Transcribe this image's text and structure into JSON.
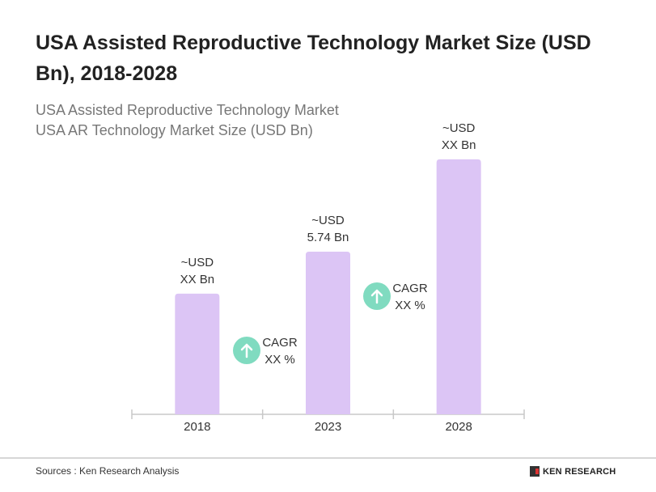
{
  "title": "USA Assisted Reproductive Technology Market Size (USD Bn), 2018-2028",
  "subtitle_lines": [
    "USA Assisted Reproductive Technology Market",
    "USA AR Technology Market Size (USD Bn)"
  ],
  "colors": {
    "bar": "#dcc5f5",
    "cagr_circle": "#80dbc0",
    "axis": "#c8c8c8"
  },
  "chart_data": {
    "type": "bar",
    "categories": [
      "2018",
      "2023",
      "2028"
    ],
    "values": [
      4.26,
      5.74,
      9.0
    ],
    "data_labels": [
      [
        "~USD",
        "XX Bn"
      ],
      [
        "~USD",
        "5.74 Bn"
      ],
      [
        "~USD",
        "XX Bn"
      ]
    ],
    "annotations": [
      {
        "icon": "arrow-up-icon",
        "lines": [
          "CAGR",
          "XX %"
        ],
        "between": [
          "2018",
          "2023"
        ]
      },
      {
        "icon": "arrow-up-icon",
        "lines": [
          "CAGR",
          "XX %"
        ],
        "between": [
          "2023",
          "2028"
        ]
      }
    ],
    "ylim": [
      0,
      9.5
    ],
    "grid": false,
    "xlabel": "",
    "ylabel": ""
  },
  "footer": {
    "source": "Sources : Ken Research Analysis",
    "logo_text": "KEN RESEARCH"
  }
}
